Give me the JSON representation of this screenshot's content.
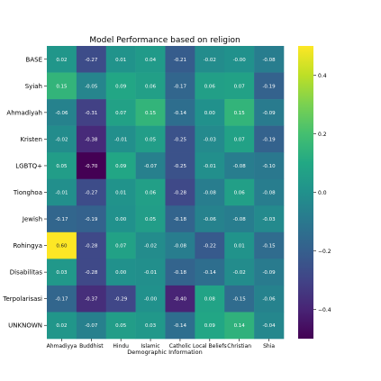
{
  "chart_data": {
    "type": "heatmap",
    "title": "Model Performance based on religion",
    "xlabel": "Demographic Information",
    "ylabel": "",
    "x_categories": [
      "Ahmadiyya",
      "Buddhist",
      "Hindu",
      "Islamic",
      "Catholic",
      "Local Beliefs",
      "Christian",
      "Shia"
    ],
    "y_categories": [
      "BASE",
      "Syiah",
      "Ahmadiyah",
      "Kristen",
      "LGBTQ+",
      "Tionghoa",
      "Jewish",
      "Rohingya",
      "Disabilitas",
      "Terpolarisasi",
      "UNKNOWN"
    ],
    "values": [
      [
        0.02,
        -0.27,
        0.01,
        0.04,
        -0.21,
        -0.02,
        -0.0,
        -0.08
      ],
      [
        0.15,
        -0.05,
        0.09,
        0.06,
        -0.17,
        0.06,
        0.07,
        -0.19
      ],
      [
        -0.06,
        -0.31,
        0.07,
        0.15,
        -0.14,
        0.0,
        0.15,
        -0.09
      ],
      [
        -0.02,
        -0.38,
        -0.01,
        0.05,
        -0.25,
        -0.03,
        0.07,
        -0.19
      ],
      [
        0.05,
        -0.7,
        0.09,
        -0.07,
        -0.25,
        -0.01,
        -0.08,
        -0.1
      ],
      [
        -0.01,
        -0.27,
        0.01,
        0.06,
        -0.28,
        -0.08,
        0.06,
        -0.08
      ],
      [
        -0.17,
        -0.19,
        0.0,
        0.05,
        -0.18,
        -0.06,
        -0.08,
        -0.03
      ],
      [
        0.6,
        -0.28,
        0.07,
        -0.02,
        -0.08,
        -0.22,
        0.01,
        -0.15
      ],
      [
        0.03,
        -0.28,
        0.0,
        -0.01,
        -0.18,
        -0.14,
        -0.02,
        -0.09
      ],
      [
        -0.17,
        -0.37,
        -0.29,
        -0.0,
        -0.4,
        0.08,
        -0.15,
        -0.06
      ],
      [
        0.02,
        -0.07,
        0.05,
        0.03,
        -0.14,
        0.09,
        0.14,
        -0.04
      ]
    ],
    "value_labels": [
      [
        "0.02",
        "-0.27",
        "0.01",
        "0.04",
        "-0.21",
        "-0.02",
        "-0.00",
        "-0.08"
      ],
      [
        "0.15",
        "-0.05",
        "0.09",
        "0.06",
        "-0.17",
        "0.06",
        "0.07",
        "-0.19"
      ],
      [
        "-0.06",
        "-0.31",
        "0.07",
        "0.15",
        "-0.14",
        "0.00",
        "0.15",
        "-0.09"
      ],
      [
        "-0.02",
        "-0.38",
        "-0.01",
        "0.05",
        "-0.25",
        "-0.03",
        "0.07",
        "-0.19"
      ],
      [
        "0.05",
        "-0.70",
        "0.09",
        "-0.07",
        "-0.25",
        "-0.01",
        "-0.08",
        "-0.10"
      ],
      [
        "-0.01",
        "-0.27",
        "0.01",
        "0.06",
        "-0.28",
        "-0.08",
        "0.06",
        "-0.08"
      ],
      [
        "-0.17",
        "-0.19",
        "0.00",
        "0.05",
        "-0.18",
        "-0.06",
        "-0.08",
        "-0.03"
      ],
      [
        "0.60",
        "-0.28",
        "0.07",
        "-0.02",
        "-0.08",
        "-0.22",
        "0.01",
        "-0.15"
      ],
      [
        "0.03",
        "-0.28",
        "0.00",
        "-0.01",
        "-0.18",
        "-0.14",
        "-0.02",
        "-0.09"
      ],
      [
        "-0.17",
        "-0.37",
        "-0.29",
        "-0.00",
        "-0.40",
        "0.08",
        "-0.15",
        "-0.06"
      ],
      [
        "0.02",
        "-0.07",
        "0.05",
        "0.03",
        "-0.14",
        "0.09",
        "0.14",
        "-0.04"
      ]
    ],
    "colormap": "viridis",
    "vmin": -0.5,
    "vmax": 0.5,
    "colorbar_ticks": [
      -0.4,
      -0.2,
      0.0,
      0.2,
      0.4
    ],
    "colorbar_tick_labels": [
      "−0.4",
      "−0.2",
      "0.0",
      "0.2",
      "0.4"
    ]
  }
}
